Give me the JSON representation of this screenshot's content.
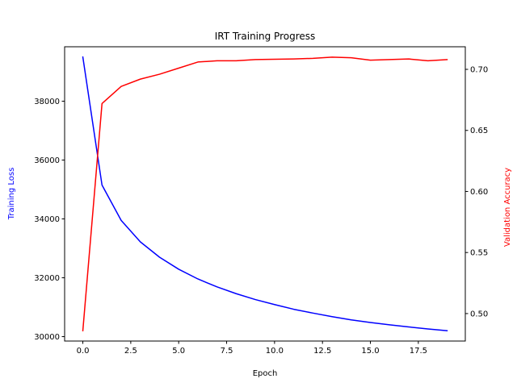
{
  "chart_data": {
    "type": "line",
    "title": "IRT Training Progress",
    "xlabel": "Epoch",
    "ylabel_left": "Training Loss",
    "ylabel_right": "Validation Accuracy",
    "xlim": [
      -0.95,
      19.95
    ],
    "ylim_left": [
      29850,
      39850
    ],
    "ylim_right": [
      0.4775,
      0.7185
    ],
    "xticks": [
      0.0,
      2.5,
      5.0,
      7.5,
      10.0,
      12.5,
      15.0,
      17.5
    ],
    "xtick_labels": [
      "0.0",
      "2.5",
      "5.0",
      "7.5",
      "10.0",
      "12.5",
      "15.0",
      "17.5"
    ],
    "yticks_left": [
      30000,
      32000,
      34000,
      36000,
      38000
    ],
    "ytick_labels_left": [
      "30000",
      "32000",
      "34000",
      "36000",
      "38000"
    ],
    "yticks_right": [
      0.5,
      0.55,
      0.6,
      0.65,
      0.7
    ],
    "ytick_labels_right": [
      "0.50",
      "0.55",
      "0.60",
      "0.65",
      "0.70"
    ],
    "grid": false,
    "legend": "none",
    "x": [
      0,
      1,
      2,
      3,
      4,
      5,
      6,
      7,
      8,
      9,
      10,
      11,
      12,
      13,
      14,
      15,
      16,
      17,
      18,
      19
    ],
    "series": [
      {
        "axis": "left",
        "color": "#0000ff",
        "values": [
          39500,
          35150,
          33950,
          33220,
          32700,
          32290,
          31960,
          31690,
          31460,
          31260,
          31090,
          30930,
          30800,
          30680,
          30570,
          30480,
          30400,
          30330,
          30260,
          30200
        ]
      },
      {
        "axis": "right",
        "color": "#ff0000",
        "values": [
          0.486,
          0.672,
          0.686,
          0.692,
          0.696,
          0.701,
          0.706,
          0.707,
          0.707,
          0.708,
          0.7083,
          0.7085,
          0.709,
          0.71,
          0.7095,
          0.7075,
          0.708,
          0.7085,
          0.707,
          0.708
        ]
      }
    ],
    "colors": {
      "left_axis_label": "#0000ff",
      "right_axis_label": "#ff0000",
      "axes": "#000000"
    }
  }
}
